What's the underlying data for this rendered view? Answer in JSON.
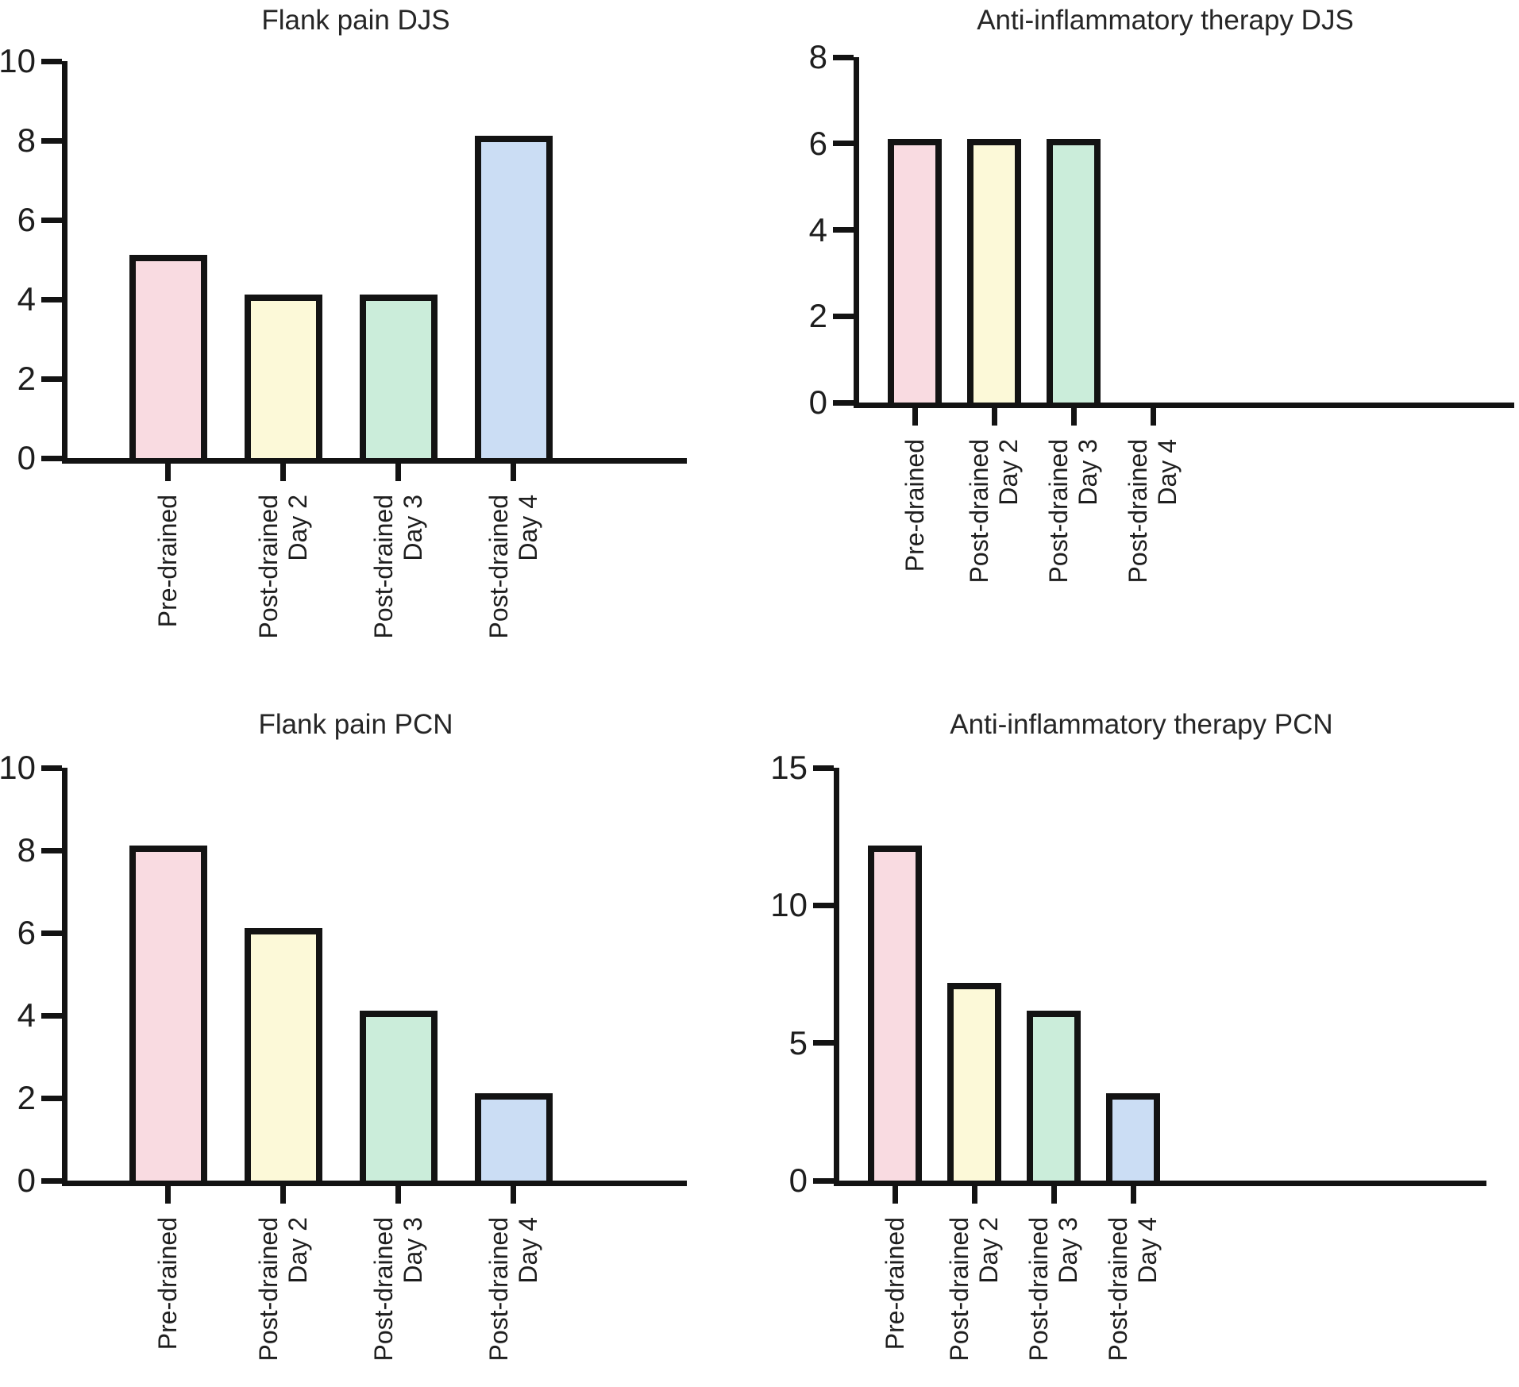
{
  "style": {
    "background": "#FFFFFF",
    "axis_color": "#131313",
    "text_color": "#1E1E1E",
    "bar_outline_color": "#131313",
    "bar_fill_colors": [
      "#F9DBE1",
      "#FCF9D8",
      "#CBEDDA",
      "#CBDDF4"
    ]
  },
  "chart_data": [
    {
      "type": "bar",
      "title": "Flank pain DJS",
      "categories": [
        "Pre-drained",
        "Post-drained Day 2",
        "Post-drained Day 3",
        "Post-drained Day 4"
      ],
      "category_lines": [
        [
          "Pre-drained"
        ],
        [
          "Post-drained",
          "Day 2"
        ],
        [
          "Post-drained",
          "Day 3"
        ],
        [
          "Post-drained",
          "Day 4"
        ]
      ],
      "values": [
        5,
        4,
        4,
        8
      ],
      "xlabel": "",
      "ylabel": "",
      "ylim": [
        0,
        10
      ],
      "yticks": [
        0,
        2,
        4,
        6,
        8,
        10
      ],
      "grid": false,
      "legend": null,
      "bar_colors": [
        "#F9DBE1",
        "#FCF9D8",
        "#CBEDDA",
        "#CBDDF4"
      ],
      "bar_outline": "#131313"
    },
    {
      "type": "bar",
      "title": "Anti-inflammatory therapy DJS",
      "categories": [
        "Pre-drained",
        "Post-drained Day 2",
        "Post-drained Day 3",
        "Post-drained Day 4"
      ],
      "category_lines": [
        [
          "Pre-drained"
        ],
        [
          "Post-drained",
          "Day 2"
        ],
        [
          "Post-drained",
          "Day 3"
        ],
        [
          "Post-drained",
          "Day 4"
        ]
      ],
      "values": [
        6,
        6,
        6,
        0
      ],
      "xlabel": "",
      "ylabel": "",
      "ylim": [
        0,
        8
      ],
      "yticks": [
        0,
        2,
        4,
        6,
        8
      ],
      "grid": false,
      "legend": null,
      "bar_colors": [
        "#F9DBE1",
        "#FCF9D8",
        "#CBEDDA",
        "#CBDDF4"
      ],
      "bar_outline": "#131313"
    },
    {
      "type": "bar",
      "title": "Flank pain PCN",
      "categories": [
        "Pre-drained",
        "Post-drained Day 2",
        "Post-drained Day 3",
        "Post-drained Day 4"
      ],
      "category_lines": [
        [
          "Pre-drained"
        ],
        [
          "Post-drained",
          "Day 2"
        ],
        [
          "Post-drained",
          "Day 3"
        ],
        [
          "Post-drained",
          "Day 4"
        ]
      ],
      "values": [
        8,
        6,
        4,
        2
      ],
      "xlabel": "",
      "ylabel": "",
      "ylim": [
        0,
        10
      ],
      "yticks": [
        0,
        2,
        4,
        6,
        8,
        10
      ],
      "grid": false,
      "legend": null,
      "bar_colors": [
        "#F9DBE1",
        "#FCF9D8",
        "#CBEDDA",
        "#CBDDF4"
      ],
      "bar_outline": "#131313"
    },
    {
      "type": "bar",
      "title": "Anti-inflammatory therapy PCN",
      "categories": [
        "Pre-drained",
        "Post-drained Day 2",
        "Post-drained Day 3",
        "Post-drained Day 4"
      ],
      "category_lines": [
        [
          "Pre-drained"
        ],
        [
          "Post-drained",
          "Day 2"
        ],
        [
          "Post-drained",
          "Day 3"
        ],
        [
          "Post-drained",
          "Day 4"
        ]
      ],
      "values": [
        12,
        7,
        6,
        3
      ],
      "xlabel": "",
      "ylabel": "",
      "ylim": [
        0,
        15
      ],
      "yticks": [
        0,
        5,
        10,
        15
      ],
      "grid": false,
      "legend": null,
      "bar_colors": [
        "#F9DBE1",
        "#FCF9D8",
        "#CBEDDA",
        "#CBDDF4"
      ],
      "bar_outline": "#131313"
    }
  ]
}
